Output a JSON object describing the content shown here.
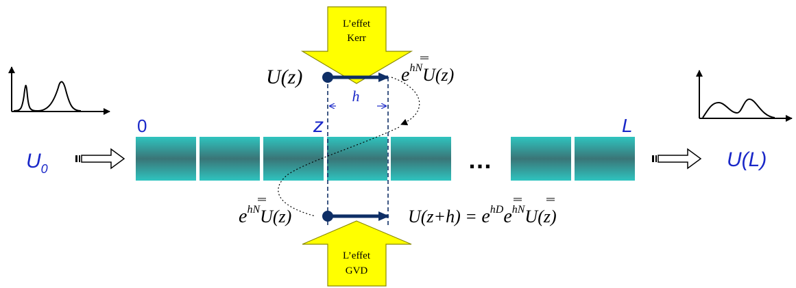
{
  "colors": {
    "segment_teal": "#2ab8b4",
    "segment_dark": "#3a7e80",
    "yellow_arrow": "#ffff00",
    "navy": "#0e2e66",
    "label_blue": "#1a28c8"
  },
  "labels": {
    "input": "U",
    "input_sub": "0",
    "output": "U(L)",
    "pos_start": "0",
    "pos_z": "z",
    "pos_end": "L",
    "step": "h",
    "ellipsis": "…"
  },
  "kerr": {
    "line1": "L’effet",
    "line2": "Kerr"
  },
  "gvd": {
    "line1": "L’effet",
    "line2": "GVD"
  },
  "math": {
    "uz_left": "U(z)",
    "top_right": {
      "e": "e",
      "exp": "hN",
      "rest": "U(z)"
    },
    "bottom_left": {
      "e": "e",
      "exp": "hN",
      "rest": "U(z)"
    },
    "bottom_right": {
      "lhs": "U(z+h) = ",
      "e1": "e",
      "exp1": "hD",
      "e2": "e",
      "exp2": "hN",
      "rest": "U(z)"
    }
  },
  "icons": [
    "input-pulse-graph-icon",
    "output-pulse-graph-icon",
    "block-arrow-icon",
    "kerr-down-arrow-icon",
    "gvd-up-arrow-icon"
  ]
}
